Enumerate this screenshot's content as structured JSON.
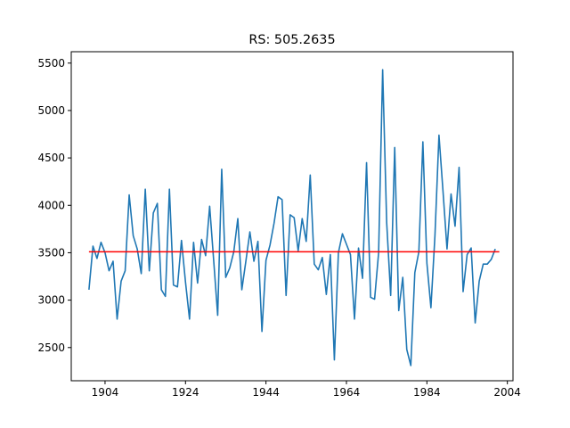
{
  "chart_data": {
    "type": "line",
    "title": "RS: 505.2635",
    "xlabel": "",
    "ylabel": "",
    "xlim": [
      1895.6,
      2005.4
    ],
    "ylim": [
      2150,
      5620
    ],
    "xticks": [
      1904,
      1924,
      1944,
      1964,
      1984,
      2004
    ],
    "yticks": [
      2500,
      3000,
      3500,
      4000,
      4500,
      5000,
      5500
    ],
    "grid": false,
    "colors": {
      "series": "#1f77b4",
      "mean_line": "#ff0000"
    },
    "series": [
      {
        "x_start": 1900,
        "values": [
          3110,
          3570,
          3440,
          3610,
          3500,
          3310,
          3410,
          2800,
          3200,
          3310,
          4110,
          3680,
          3540,
          3280,
          4170,
          3310,
          3920,
          4020,
          3110,
          3040,
          4170,
          3160,
          3140,
          3630,
          3190,
          2800,
          3610,
          3180,
          3640,
          3470,
          3990,
          3420,
          2840,
          4380,
          3240,
          3340,
          3510,
          3860,
          3110,
          3410,
          3720,
          3410,
          3620,
          2670,
          3420,
          3580,
          3810,
          4090,
          4060,
          3050,
          3900,
          3870,
          3520,
          3860,
          3620,
          4320,
          3380,
          3320,
          3450,
          3060,
          3480,
          2370,
          3500,
          3700,
          3590,
          3480,
          2800,
          3550,
          3230,
          4450,
          3030,
          3010,
          3500,
          5430,
          3820,
          3050,
          4610,
          2890,
          3240,
          2480,
          2310,
          3290,
          3510,
          4670,
          3390,
          2920,
          3680,
          4740,
          4150,
          3540,
          4120,
          3780,
          4400,
          3090,
          3480,
          3550,
          2760,
          3200,
          3380,
          3380,
          3430,
          3540
        ]
      },
      {
        "x": [
          1900,
          2002
        ],
        "values": [
          3510,
          3510
        ]
      }
    ]
  }
}
